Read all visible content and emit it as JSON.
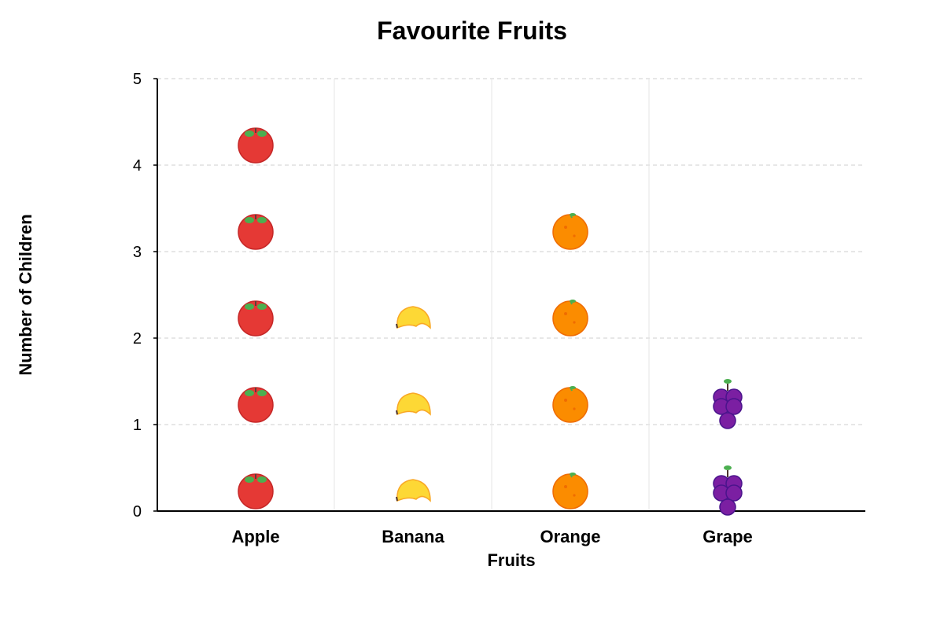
{
  "chart_data": {
    "type": "pictograph",
    "title": "Favourite Fruits",
    "xlabel": "Fruits",
    "ylabel": "Number of Children",
    "categories": [
      "Apple",
      "Banana",
      "Orange",
      "Grape"
    ],
    "values": [
      5,
      3,
      4,
      2
    ],
    "icons": [
      "apple-icon",
      "banana-icon",
      "orange-icon",
      "grape-icon"
    ],
    "ylim": [
      0,
      5
    ],
    "yticks": [
      "0",
      "1",
      "2",
      "3",
      "4",
      "5"
    ],
    "grid": true,
    "colors": {
      "apple": "#e53935",
      "banana": "#fdd835",
      "orange": "#fb8c00",
      "grape": "#7b1fa2",
      "leaf": "#4caf50"
    }
  }
}
